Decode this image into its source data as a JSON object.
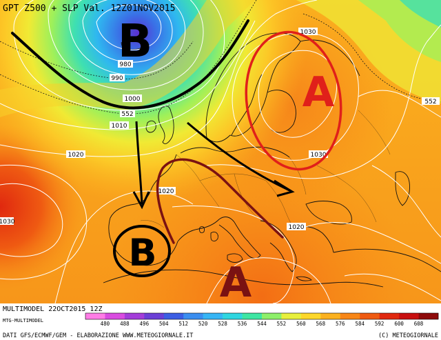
{
  "header": {
    "title": "GPT Z500 + SLP Val. 12Z01NOV2015"
  },
  "footer": {
    "model_run": "MULTIMODEL 22OCT2015 12Z",
    "model_tag": "MTG-MULTIMODEL",
    "credits": "DATI GFS/ECMWF/GEM - ELABORAZIONE WWW.METEOGIORNALE.IT",
    "copyright": "(C) METEOGIORNALE"
  },
  "pressure_systems": [
    {
      "type": "low",
      "label": "B",
      "where": "north-atlantic"
    },
    {
      "type": "high",
      "label": "A",
      "where": "eastern-europe"
    },
    {
      "type": "low",
      "label": "B",
      "where": "iberia"
    },
    {
      "type": "high",
      "label": "A",
      "where": "central-mediterranean"
    }
  ],
  "isobar_labels": [
    "980",
    "990",
    "1000",
    "1010",
    "1020",
    "1020",
    "1020",
    "1030",
    "1030",
    "1030"
  ],
  "geopotential_labels": [
    "552",
    "552"
  ],
  "legend": {
    "values": [
      "480",
      "488",
      "496",
      "504",
      "512",
      "520",
      "528",
      "536",
      "544",
      "552",
      "560",
      "568",
      "576",
      "584",
      "592",
      "600",
      "608"
    ],
    "colors": [
      "#ff7ce6",
      "#d94ce0",
      "#a33dd9",
      "#6b3fd6",
      "#3c5ee3",
      "#3b8ef0",
      "#36b5f5",
      "#2fd6e0",
      "#3ee6a3",
      "#8ef06a",
      "#e8f03c",
      "#fdd72a",
      "#fbb11f",
      "#f88617",
      "#ef5a12",
      "#e0280f",
      "#c80f0f",
      "#8e0a0a"
    ]
  },
  "colors": {
    "isobar": "#ffffff",
    "coastline": "#000000",
    "low_marker": "#000000",
    "high_marker_red": "#e0201a",
    "high_marker_dark": "#7a1212"
  }
}
